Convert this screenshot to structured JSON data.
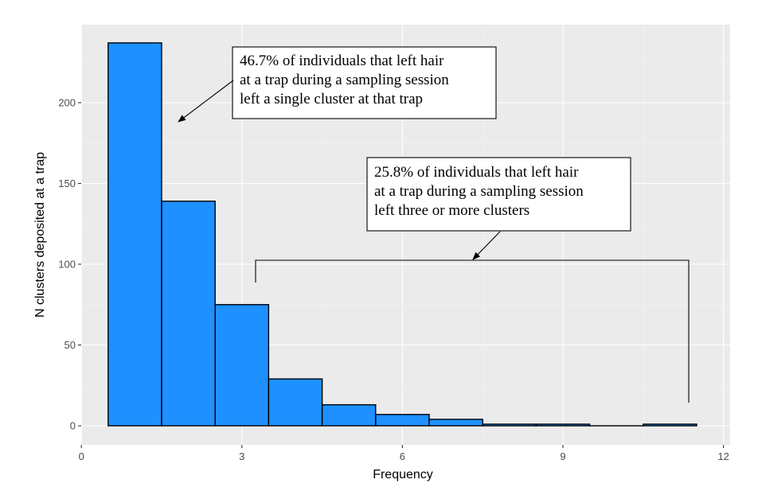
{
  "chart_data": {
    "type": "bar",
    "subtype": "histogram",
    "x": [
      1,
      2,
      3,
      4,
      5,
      6,
      7,
      8,
      9,
      10,
      11
    ],
    "values": [
      237,
      139,
      75,
      29,
      13,
      7,
      4,
      1,
      1,
      0,
      1
    ],
    "bin_width": 1,
    "title": "",
    "xlabel": "Frequency",
    "ylabel": "N clusters deposited at a trap",
    "xlim": [
      0,
      12
    ],
    "ylim": [
      0,
      237
    ],
    "xticks": [
      0,
      3,
      6,
      9,
      12
    ],
    "yticks": [
      0,
      50,
      100,
      150,
      200
    ],
    "grid": true,
    "bar_color": "#1E90FF",
    "bar_outline": "#000000",
    "panel_background": "#EBEBEB",
    "annotations": [
      {
        "lines": [
          "46.7% of individuals that left hair",
          "at a trap during a sampling session",
          "left a single cluster at that trap"
        ]
      },
      {
        "lines": [
          "25.8% of individuals that left hair",
          "at a trap during a sampling session",
          "left three or more clusters"
        ]
      }
    ]
  }
}
